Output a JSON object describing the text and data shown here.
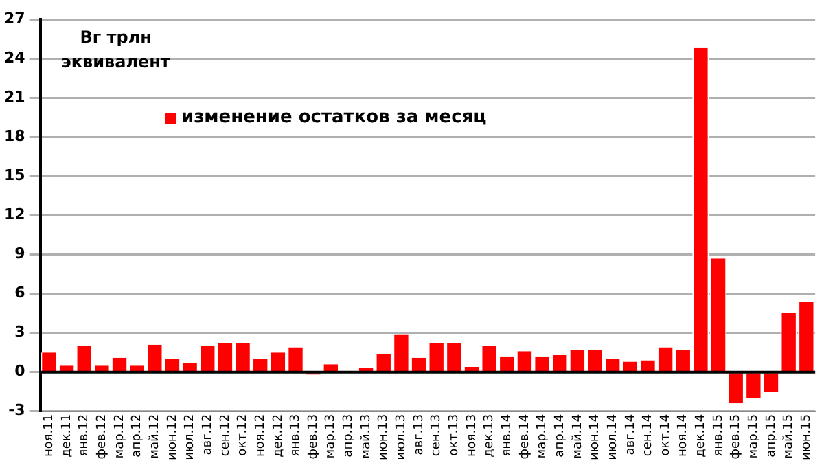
{
  "chart_data": {
    "type": "bar",
    "ylabel": "Вг трлн эквивалент",
    "categories": [
      "ноя.11",
      "дек.11",
      "янв.12",
      "фев.12",
      "мар.12",
      "апр.12",
      "май.12",
      "июн.12",
      "июл.12",
      "авг.12",
      "сен.12",
      "окт.12",
      "ноя.12",
      "дек.12",
      "янв.13",
      "фев.13",
      "мар.13",
      "апр.13",
      "май.13",
      "июн.13",
      "июл.13",
      "авг.13",
      "сен.13",
      "окт.13",
      "ноя.13",
      "дек.13",
      "янв.14",
      "фев.14",
      "мар.14",
      "апр.14",
      "май.14",
      "июн.14",
      "июл.14",
      "авг.14",
      "сен.14",
      "окт.14",
      "ноя.14",
      "дек.14",
      "янв.15",
      "фев.15",
      "мар.15",
      "апр.15",
      "май.15",
      "июн.15"
    ],
    "series": [
      {
        "name": "изменение остатков за месяц",
        "color": "#ff0000",
        "values": [
          1.5,
          0.5,
          2.0,
          0.5,
          1.1,
          0.5,
          2.1,
          1.0,
          0.7,
          2.0,
          2.2,
          2.2,
          1.0,
          1.5,
          1.9,
          -0.2,
          0.6,
          0.0,
          0.3,
          1.4,
          2.9,
          1.1,
          2.2,
          2.2,
          0.4,
          2.0,
          1.2,
          1.6,
          1.2,
          1.3,
          1.7,
          1.7,
          1.0,
          0.8,
          0.9,
          1.9,
          1.7,
          24.8,
          8.7,
          -2.4,
          -2.0,
          -1.5,
          4.5,
          5.4
        ]
      }
    ],
    "ylim": [
      -3,
      27
    ],
    "yticks": [
      -3,
      0,
      3,
      6,
      9,
      12,
      15,
      18,
      21,
      24,
      27
    ],
    "grid": "y",
    "legend": "top"
  }
}
